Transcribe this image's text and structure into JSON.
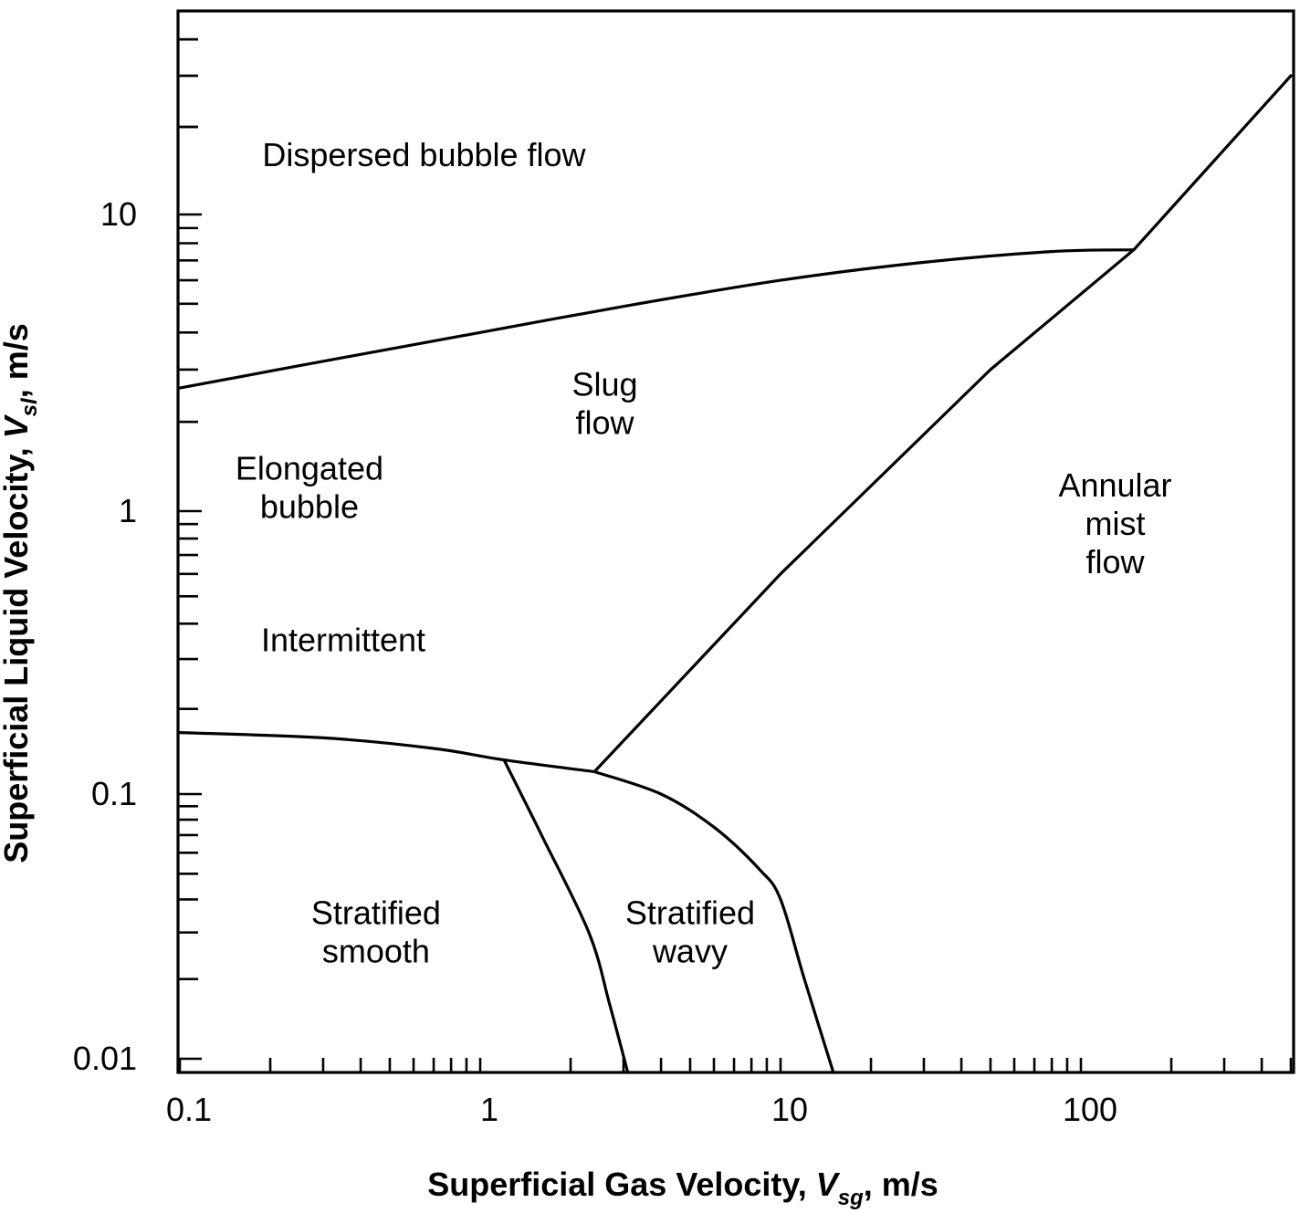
{
  "chart_data": {
    "type": "line",
    "title": "",
    "description": "Horizontal two-phase flow regime map (log-log)",
    "xlabel": "Superficial Gas Velocity, V_sg, m/s",
    "xlabel_parts": {
      "main": "Superficial Gas Velocity, ",
      "symbol": "V",
      "sub": "sg",
      "suffix": ", m/s"
    },
    "ylabel": "Superficial Liquid Velocity, V_sl, m/s",
    "ylabel_parts": {
      "main": "Superficial Liquid Velocity, ",
      "symbol": "V",
      "sub": "sl",
      "suffix": ", m/s"
    },
    "xscale": "log",
    "yscale": "log",
    "xlim": [
      0.1,
      500
    ],
    "ylim": [
      0.0085,
      40
    ],
    "grid": false,
    "legend": null,
    "x_tick_labels": [
      "0.1",
      "1",
      "10",
      "100"
    ],
    "x_ticks": [
      0.1,
      1,
      10,
      100
    ],
    "y_tick_labels": [
      "0.01",
      "0.1",
      "1",
      "10"
    ],
    "y_ticks": [
      0.01,
      0.1,
      1,
      10
    ],
    "regions": [
      {
        "name": "dispersed-bubble",
        "lines": [
          "Dispersed bubble flow"
        ],
        "x": 0.65,
        "y": 16
      },
      {
        "name": "slug",
        "lines": [
          "Slug",
          "flow"
        ],
        "x": 2.6,
        "y": 2.3
      },
      {
        "name": "elongated-bubble",
        "lines": [
          "Elongated",
          "bubble"
        ],
        "x": 0.27,
        "y": 1.2
      },
      {
        "name": "intermittent",
        "lines": [
          "Intermittent"
        ],
        "x": 0.35,
        "y": 0.35
      },
      {
        "name": "annular-mist",
        "lines": [
          "Annular",
          "mist",
          "flow"
        ],
        "x": 130,
        "y": 0.9
      },
      {
        "name": "stratified-smooth",
        "lines": [
          "Stratified",
          "smooth"
        ],
        "x": 0.45,
        "y": 0.03
      },
      {
        "name": "stratified-wavy",
        "lines": [
          "Stratified",
          "wavy"
        ],
        "x": 5.0,
        "y": 0.03
      }
    ],
    "series": [
      {
        "name": "dispersed-bubble-boundary",
        "points": [
          [
            0.1,
            2.6
          ],
          [
            0.3,
            3.2
          ],
          [
            1,
            4.0
          ],
          [
            3,
            4.9
          ],
          [
            10,
            6.0
          ],
          [
            30,
            6.9
          ],
          [
            80,
            7.5
          ],
          [
            150,
            7.6
          ]
        ]
      },
      {
        "name": "annular-boundary",
        "points": [
          [
            2.4,
            0.12
          ],
          [
            10,
            0.6
          ],
          [
            50,
            3.0
          ],
          [
            150,
            7.6
          ],
          [
            500,
            30
          ]
        ]
      },
      {
        "name": "stratified-intermittent-boundary",
        "points": [
          [
            0.1,
            0.165
          ],
          [
            0.3,
            0.158
          ],
          [
            0.7,
            0.145
          ],
          [
            1.2,
            0.132
          ],
          [
            2.4,
            0.12
          ]
        ]
      },
      {
        "name": "stratified-wavy-annular-boundary",
        "points": [
          [
            2.4,
            0.12
          ],
          [
            4,
            0.1
          ],
          [
            6,
            0.075
          ],
          [
            8.5,
            0.052
          ],
          [
            10,
            0.04
          ],
          [
            12,
            0.02
          ],
          [
            15,
            0.0085
          ]
        ]
      },
      {
        "name": "smooth-wavy-boundary",
        "points": [
          [
            1.2,
            0.132
          ],
          [
            1.6,
            0.07
          ],
          [
            2.3,
            0.03
          ],
          [
            2.7,
            0.016
          ],
          [
            3.1,
            0.0085
          ]
        ]
      }
    ]
  }
}
